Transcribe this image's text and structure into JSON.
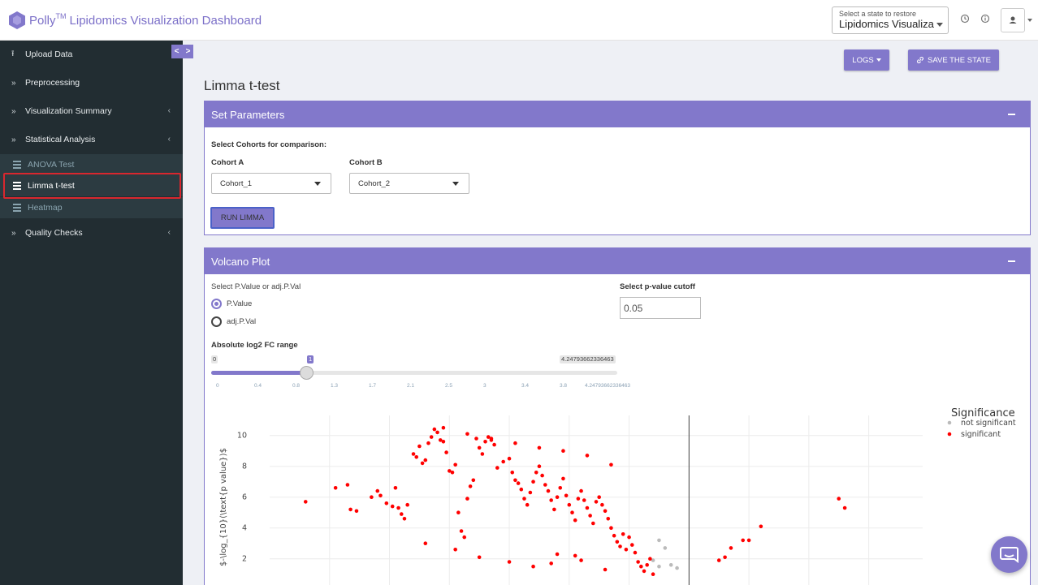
{
  "header": {
    "brand": "Polly",
    "brand_tm": "TM",
    "app_title": "Lipidomics Visualization Dashboard",
    "state_select_label": "Select a state to restore",
    "state_select_value": "Lipidomics Visualiza..."
  },
  "sidebar": {
    "items": [
      {
        "label": "Upload Data"
      },
      {
        "label": "Preprocessing"
      },
      {
        "label": "Visualization Summary"
      },
      {
        "label": "Statistical Analysis"
      },
      {
        "label": "Quality Checks"
      }
    ],
    "subitems": [
      {
        "label": "ANOVA Test"
      },
      {
        "label": "Limma t-test",
        "active": true
      },
      {
        "label": "Heatmap"
      }
    ],
    "toggle": [
      "<",
      ">"
    ]
  },
  "toolbar": {
    "logs_label": "LOGS",
    "save_state_label": "SAVE THE STATE"
  },
  "page": {
    "title": "Limma t-test"
  },
  "set_parameters": {
    "title": "Set Parameters",
    "cohorts_heading": "Select Cohorts for comparison:",
    "cohort_a_label": "Cohort A",
    "cohort_a_value": "Cohort_1",
    "cohort_b_label": "Cohort B",
    "cohort_b_value": "Cohort_2",
    "run_label": "RUN LIMMA"
  },
  "volcano": {
    "title": "Volcano Plot",
    "pvalue_select_label": "Select P.Value or adj.P.Val",
    "options": [
      "P.Value",
      "adj.P.Val"
    ],
    "selected_option": "P.Value",
    "cutoff_label": "Select p-value cutoff",
    "cutoff_value": "0.05",
    "fc_range_label": "Absolute log2 FC range",
    "slider_min": "0",
    "slider_value": "1",
    "slider_value_fraction": 0.2354,
    "slider_max": "4.24793662336463",
    "slider_ticks": [
      "0",
      "0.4",
      "0.8",
      "1.3",
      "1.7",
      "2.1",
      "2.5",
      "3",
      "3.4",
      "3.8",
      "4.24793662336463"
    ]
  },
  "chart_data": {
    "type": "scatter",
    "ylabel": "$-\\log_{10}(\\text{p value})$",
    "y_ticks": [
      "2",
      "4",
      "6",
      "8",
      "10"
    ],
    "legend_title": "Significance",
    "legend_position": "top-right",
    "grid": true,
    "xlim": [
      -6,
      4.9
    ],
    "ylim": [
      0.3,
      11.3
    ],
    "threshold_x": 1,
    "series": [
      {
        "name": "not significant",
        "color": "#bbbbbb",
        "x": [
          0.5,
          0.6,
          0.4,
          0.7,
          0.8,
          0.5
        ],
        "y": [
          3.2,
          2.7,
          1.9,
          1.6,
          1.4,
          1.5
        ]
      },
      {
        "name": "significant",
        "color": "#ff0000",
        "x": [
          -5.4,
          -4.9,
          -4.7,
          -4.65,
          -4.55,
          -4.3,
          -4.2,
          -4.15,
          -4.05,
          -3.95,
          -3.9,
          -3.85,
          -3.8,
          -3.75,
          -3.7,
          -3.6,
          -3.55,
          -3.5,
          -3.45,
          -3.4,
          -3.35,
          -3.3,
          -3.25,
          -3.2,
          -3.15,
          -3.1,
          -3.05,
          -3.0,
          -2.95,
          -2.9,
          -2.85,
          -2.8,
          -2.75,
          -2.7,
          -2.65,
          -2.6,
          -2.55,
          -2.5,
          -2.45,
          -2.4,
          -2.35,
          -2.3,
          -2.25,
          -2.2,
          -2.1,
          -2.0,
          -1.95,
          -1.9,
          -1.85,
          -1.8,
          -1.75,
          -1.7,
          -1.65,
          -1.6,
          -1.55,
          -1.5,
          -1.45,
          -1.4,
          -1.35,
          -1.3,
          -1.25,
          -1.2,
          -1.15,
          -1.1,
          -1.05,
          -1.0,
          -0.95,
          -0.9,
          -0.85,
          -0.8,
          -0.75,
          -0.7,
          -0.65,
          -0.6,
          -0.55,
          -0.5,
          -0.45,
          -0.4,
          -0.35,
          -0.3,
          -0.25,
          -0.2,
          -0.15,
          -0.1,
          -0.05,
          0.0,
          0.05,
          0.1,
          0.15,
          0.2,
          0.25,
          0.3,
          0.35,
          0.4,
          -3.1,
          -2.7,
          -2.3,
          -1.9,
          -1.5,
          -1.1,
          -0.7,
          -0.3,
          -2.5,
          -2.0,
          -1.6,
          -1.2,
          -0.8,
          -0.4,
          -3.4,
          -2.9,
          -1.3,
          -0.9,
          1.5,
          1.6,
          1.7,
          1.9,
          2.0,
          2.2,
          3.5,
          3.6
        ],
        "y": [
          5.7,
          6.6,
          6.8,
          5.2,
          5.1,
          6.0,
          6.4,
          6.1,
          5.6,
          5.4,
          6.6,
          5.3,
          4.9,
          4.6,
          5.5,
          8.8,
          8.6,
          9.3,
          8.2,
          8.4,
          9.5,
          9.9,
          10.4,
          10.2,
          9.7,
          9.6,
          8.9,
          7.7,
          7.6,
          8.1,
          5.0,
          3.8,
          3.4,
          5.9,
          6.7,
          7.1,
          9.8,
          9.2,
          8.8,
          9.6,
          9.9,
          9.7,
          9.4,
          7.9,
          8.3,
          8.5,
          7.6,
          7.1,
          6.9,
          6.5,
          5.9,
          5.5,
          6.3,
          7.0,
          7.6,
          8.0,
          7.4,
          6.8,
          6.4,
          5.8,
          5.2,
          6.0,
          6.6,
          7.2,
          6.1,
          5.5,
          5.0,
          4.5,
          5.9,
          6.4,
          5.8,
          5.3,
          4.8,
          4.3,
          5.7,
          6.0,
          5.5,
          5.1,
          4.6,
          4.0,
          3.5,
          3.1,
          2.8,
          3.6,
          2.6,
          3.4,
          2.9,
          2.4,
          1.8,
          1.5,
          1.2,
          1.6,
          2.0,
          1.0,
          10.5,
          10.1,
          9.8,
          9.5,
          9.2,
          9.0,
          8.7,
          8.1,
          2.1,
          1.8,
          1.5,
          2.3,
          1.9,
          1.3,
          3.0,
          2.6,
          1.7,
          2.2,
          1.9,
          2.1,
          2.7,
          3.2,
          3.2,
          4.1,
          5.9,
          5.3
        ]
      }
    ]
  },
  "colors": {
    "accent": "#8278cb",
    "sidebar_bg": "#222d32",
    "highlight": "#d9272e"
  }
}
